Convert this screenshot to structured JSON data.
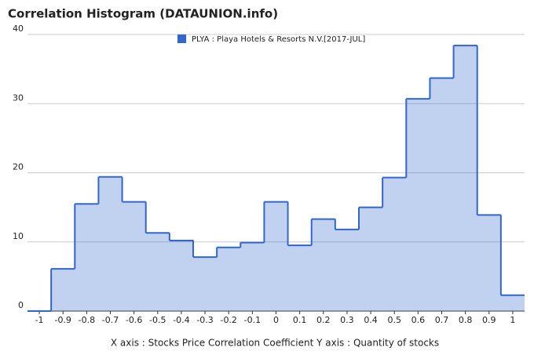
{
  "chart_data": {
    "type": "histogram",
    "title": "Correlation Histogram (DATAUNION.info)",
    "x_label": "X axis : Stocks Price Correlation Coefficient  Y axis : Quantity of stocks",
    "bins": [
      -1.05,
      -0.95,
      -0.85,
      -0.75,
      -0.65,
      -0.55,
      -0.45,
      -0.35,
      -0.25,
      -0.15,
      -0.05,
      0.05,
      0.15,
      0.25,
      0.35,
      0.45,
      0.55,
      0.65,
      0.75,
      0.85,
      0.95,
      1.05
    ],
    "series": [
      {
        "name": "PLYA : Playa Hotels & Resorts N.V.[2017-JUL]",
        "color": "#3366cc",
        "values": [
          0,
          6.1,
          15.5,
          19.4,
          15.8,
          11.3,
          10.2,
          7.8,
          9.2,
          9.9,
          15.8,
          9.5,
          13.3,
          11.8,
          15.0,
          19.3,
          30.7,
          33.7,
          38.4,
          13.9,
          2.3
        ]
      }
    ],
    "xlim": [
      -1.05,
      1.05
    ],
    "ylim": [
      0,
      40
    ],
    "xticks": [
      -1,
      -0.9,
      -0.8,
      -0.7,
      -0.6,
      -0.5,
      -0.4,
      -0.3,
      -0.2,
      -0.1,
      0,
      0.1,
      0.2,
      0.3,
      0.4,
      0.5,
      0.6,
      0.7,
      0.8,
      0.9,
      1
    ],
    "yticks": [
      0,
      10,
      20,
      30,
      40
    ],
    "grid": true
  }
}
